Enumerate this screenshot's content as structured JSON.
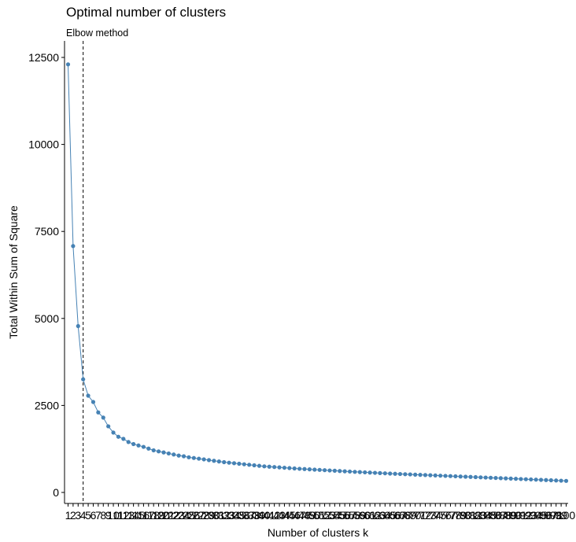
{
  "chart_data": {
    "type": "line",
    "title": "Optimal number of clusters",
    "subtitle": "Elbow method",
    "xlabel": "Number of clusters k",
    "ylabel": "Total Within Sum of Square",
    "x": [
      1,
      2,
      3,
      4,
      5,
      6,
      7,
      8,
      9,
      10,
      11,
      12,
      13,
      14,
      15,
      16,
      17,
      18,
      19,
      20,
      21,
      22,
      23,
      24,
      25,
      26,
      27,
      28,
      29,
      30,
      31,
      32,
      33,
      34,
      35,
      36,
      37,
      38,
      39,
      40,
      41,
      42,
      43,
      44,
      45,
      46,
      47,
      48,
      49,
      50,
      51,
      52,
      53,
      54,
      55,
      56,
      57,
      58,
      59,
      60,
      61,
      62,
      63,
      64,
      65,
      66,
      67,
      68,
      69,
      70,
      71,
      72,
      73,
      74,
      75,
      76,
      77,
      78,
      79,
      80,
      81,
      82,
      83,
      84,
      85,
      86,
      87,
      88,
      89,
      90,
      91,
      92,
      93,
      94,
      95,
      96,
      97,
      98,
      99,
      100
    ],
    "y_ticks": [
      0,
      2500,
      5000,
      7500,
      10000,
      12500
    ],
    "ylim": [
      -200,
      13100
    ],
    "elbow_k": 4,
    "line_color": "#4682B4",
    "grid": false,
    "series": [
      {
        "values": [
          12300,
          7080,
          4780,
          3250,
          2780,
          2600,
          2300,
          2150,
          1900,
          1720,
          1600,
          1540,
          1450,
          1390,
          1350,
          1310,
          1260,
          1210,
          1180,
          1150,
          1120,
          1090,
          1060,
          1040,
          1010,
          990,
          970,
          950,
          930,
          910,
          890,
          870,
          855,
          840,
          825,
          810,
          795,
          780,
          765,
          750,
          740,
          730,
          720,
          710,
          700,
          690,
          680,
          672,
          664,
          656,
          648,
          640,
          632,
          624,
          616,
          608,
          600,
          592,
          585,
          578,
          571,
          564,
          557,
          550,
          543,
          536,
          530,
          524,
          518,
          512,
          506,
          500,
          494,
          488,
          482,
          476,
          470,
          464,
          458,
          452,
          446,
          440,
          434,
          428,
          422,
          416,
          410,
          404,
          398,
          392,
          386,
          380,
          374,
          368,
          362,
          356,
          350,
          344,
          338,
          332
        ]
      }
    ]
  }
}
